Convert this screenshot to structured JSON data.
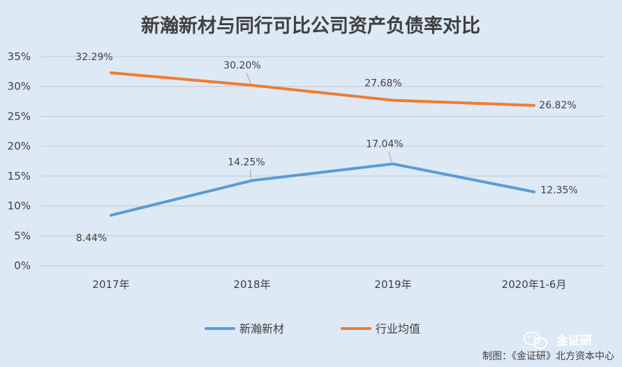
{
  "chart_data": {
    "type": "line",
    "title": "新瀚新材与同行可比公司资产负债率对比",
    "categories": [
      "2017年",
      "2018年",
      "2019年",
      "2020年1-6月"
    ],
    "y_ticks": [
      "0%",
      "5%",
      "10%",
      "15%",
      "20%",
      "25%",
      "30%",
      "35%"
    ],
    "ylim": [
      0,
      35
    ],
    "grid": "horizontal",
    "legend_position": "bottom",
    "series": [
      {
        "name": "新瀚新材",
        "color": "#5b9bd5",
        "values": [
          8.44,
          14.25,
          17.04,
          12.35
        ],
        "labels": [
          "8.44%",
          "14.25%",
          "17.04%",
          "12.35%"
        ]
      },
      {
        "name": "行业均值",
        "color": "#ed7d31",
        "values": [
          32.29,
          30.2,
          27.68,
          26.82
        ],
        "labels": [
          "32.29%",
          "30.20%",
          "27.68%",
          "26.82%"
        ]
      }
    ]
  },
  "credit": "制图：《金证研》北方资本中心",
  "watermark": {
    "text": "金证研",
    "icon": "wechat-icon"
  }
}
